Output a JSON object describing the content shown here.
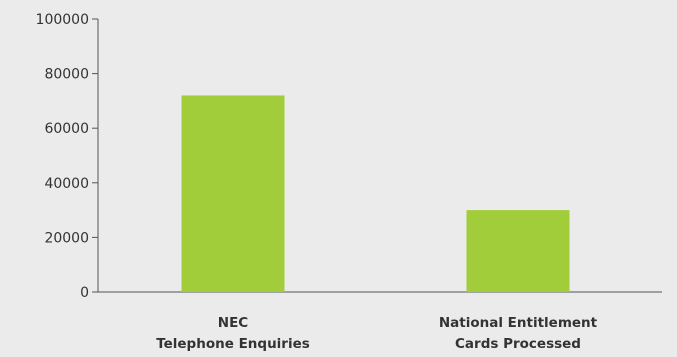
{
  "chart_data": {
    "type": "bar",
    "title": "",
    "xlabel": "",
    "ylabel": "",
    "categories": [
      [
        "NEC",
        "Telephone Enquiries"
      ],
      [
        "National Entitlement",
        "Cards Processed"
      ]
    ],
    "values": [
      72000,
      30000
    ],
    "ylim": [
      0,
      100000
    ],
    "yticks": [
      "0",
      "20000",
      "40000",
      "60000",
      "80000",
      "100000"
    ],
    "ytick_values": [
      0,
      20000,
      40000,
      60000,
      80000,
      100000
    ],
    "grid": false,
    "legend": "none",
    "bar_color": "#a2cd3a",
    "axis_color": "#555555",
    "background": "#ebebeb"
  }
}
